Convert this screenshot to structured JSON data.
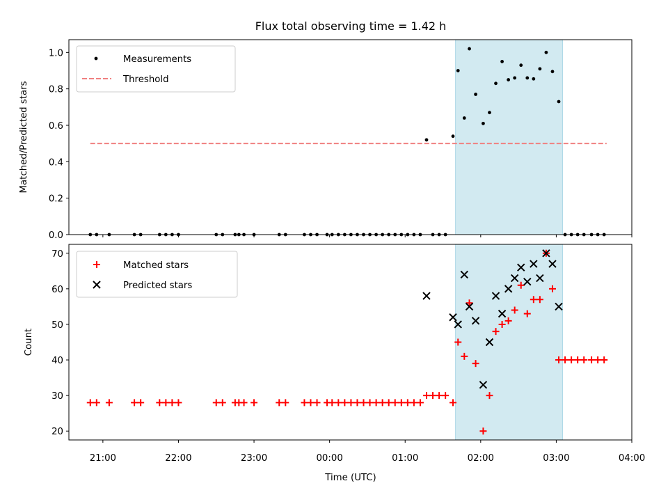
{
  "title": "Flux total observing time = 1.42 h",
  "colors": {
    "measurement": "#000000",
    "threshold": "#f08080",
    "matched": "#ff0000",
    "predicted": "#000000",
    "shade": "#add8e6"
  },
  "chart_data": [
    {
      "type": "scatter",
      "ylabel": "Matched/Predicted stars",
      "xlabel": "",
      "ylim": [
        0,
        1.07
      ],
      "yticks": [
        0.0,
        0.2,
        0.4,
        0.6,
        0.8,
        1.0
      ],
      "ytick_labels": [
        "0.0",
        "0.2",
        "0.4",
        "0.6",
        "0.8",
        "1.0"
      ],
      "legend_position": "top-left",
      "legend": [
        {
          "label": "Measurements",
          "marker": "dot"
        },
        {
          "label": "Threshold",
          "marker": "dashed-line"
        }
      ],
      "shaded_region": {
        "x": [
          "01:40",
          "03:05"
        ]
      },
      "threshold": {
        "name": "Threshold",
        "y": 0.5,
        "x": [
          "20:50",
          "03:40"
        ]
      },
      "series": [
        {
          "name": "Measurements",
          "marker": "dot",
          "points": [
            [
              "20:50",
              0
            ],
            [
              "20:55",
              0
            ],
            [
              "21:05",
              0
            ],
            [
              "21:25",
              0
            ],
            [
              "21:30",
              0
            ],
            [
              "21:45",
              0
            ],
            [
              "21:50",
              0
            ],
            [
              "21:55",
              0
            ],
            [
              "22:00",
              0
            ],
            [
              "22:30",
              0
            ],
            [
              "22:35",
              0
            ],
            [
              "22:45",
              0
            ],
            [
              "22:48",
              0
            ],
            [
              "22:52",
              0
            ],
            [
              "23:00",
              0
            ],
            [
              "23:20",
              0
            ],
            [
              "23:25",
              0
            ],
            [
              "23:40",
              0
            ],
            [
              "23:45",
              0
            ],
            [
              "23:50",
              0
            ],
            [
              "23:58",
              0
            ],
            [
              "00:02",
              0
            ],
            [
              "00:07",
              0
            ],
            [
              "00:12",
              0
            ],
            [
              "00:17",
              0
            ],
            [
              "00:22",
              0
            ],
            [
              "00:27",
              0
            ],
            [
              "00:32",
              0
            ],
            [
              "00:37",
              0
            ],
            [
              "00:42",
              0
            ],
            [
              "00:47",
              0
            ],
            [
              "00:52",
              0
            ],
            [
              "00:57",
              0
            ],
            [
              "01:02",
              0
            ],
            [
              "01:07",
              0
            ],
            [
              "01:12",
              0
            ],
            [
              "01:17",
              0.52
            ],
            [
              "01:22",
              0
            ],
            [
              "01:27",
              0
            ],
            [
              "01:32",
              0
            ],
            [
              "01:38",
              0.54
            ],
            [
              "01:42",
              0.9
            ],
            [
              "01:47",
              0.64
            ],
            [
              "01:51",
              1.02
            ],
            [
              "01:56",
              0.77
            ],
            [
              "02:02",
              0.61
            ],
            [
              "02:07",
              0.67
            ],
            [
              "02:12",
              0.83
            ],
            [
              "02:17",
              0.95
            ],
            [
              "02:22",
              0.85
            ],
            [
              "02:27",
              0.86
            ],
            [
              "02:32",
              0.93
            ],
            [
              "02:37",
              0.86
            ],
            [
              "02:42",
              0.855
            ],
            [
              "02:47",
              0.91
            ],
            [
              "02:52",
              1.0
            ],
            [
              "02:57",
              0.895
            ],
            [
              "03:02",
              0.73
            ],
            [
              "03:07",
              0
            ],
            [
              "03:12",
              0
            ],
            [
              "03:17",
              0
            ],
            [
              "03:22",
              0
            ],
            [
              "03:28",
              0
            ],
            [
              "03:33",
              0
            ],
            [
              "03:38",
              0
            ]
          ]
        }
      ]
    },
    {
      "type": "scatter",
      "ylabel": "Count",
      "xlabel": "Time (UTC)",
      "ylim": [
        17.5,
        72.5
      ],
      "yticks": [
        20,
        30,
        40,
        50,
        60,
        70
      ],
      "ytick_labels": [
        "20",
        "30",
        "40",
        "50",
        "60",
        "70"
      ],
      "xticks": [
        "21:00",
        "22:00",
        "23:00",
        "00:00",
        "01:00",
        "02:00",
        "03:00",
        "04:00"
      ],
      "xlim": [
        "20:33",
        "04:00"
      ],
      "legend_position": "top-left",
      "legend": [
        {
          "label": "Matched stars",
          "marker": "plus"
        },
        {
          "label": "Predicted stars",
          "marker": "x"
        }
      ],
      "shaded_region": {
        "x": [
          "01:40",
          "03:05"
        ]
      },
      "series": [
        {
          "name": "Matched stars",
          "marker": "plus",
          "points": [
            [
              "20:50",
              28
            ],
            [
              "20:55",
              28
            ],
            [
              "21:05",
              28
            ],
            [
              "21:25",
              28
            ],
            [
              "21:30",
              28
            ],
            [
              "21:45",
              28
            ],
            [
              "21:50",
              28
            ],
            [
              "21:55",
              28
            ],
            [
              "22:00",
              28
            ],
            [
              "22:30",
              28
            ],
            [
              "22:35",
              28
            ],
            [
              "22:45",
              28
            ],
            [
              "22:48",
              28
            ],
            [
              "22:52",
              28
            ],
            [
              "23:00",
              28
            ],
            [
              "23:20",
              28
            ],
            [
              "23:25",
              28
            ],
            [
              "23:40",
              28
            ],
            [
              "23:45",
              28
            ],
            [
              "23:50",
              28
            ],
            [
              "23:58",
              28
            ],
            [
              "00:02",
              28
            ],
            [
              "00:07",
              28
            ],
            [
              "00:12",
              28
            ],
            [
              "00:17",
              28
            ],
            [
              "00:22",
              28
            ],
            [
              "00:27",
              28
            ],
            [
              "00:32",
              28
            ],
            [
              "00:37",
              28
            ],
            [
              "00:42",
              28
            ],
            [
              "00:47",
              28
            ],
            [
              "00:52",
              28
            ],
            [
              "00:57",
              28
            ],
            [
              "01:02",
              28
            ],
            [
              "01:07",
              28
            ],
            [
              "01:12",
              28
            ],
            [
              "01:17",
              30
            ],
            [
              "01:22",
              30
            ],
            [
              "01:27",
              30
            ],
            [
              "01:32",
              30
            ],
            [
              "01:38",
              28
            ],
            [
              "01:42",
              45
            ],
            [
              "01:47",
              41
            ],
            [
              "01:51",
              56
            ],
            [
              "01:56",
              39
            ],
            [
              "02:02",
              20
            ],
            [
              "02:07",
              30
            ],
            [
              "02:12",
              48
            ],
            [
              "02:17",
              50
            ],
            [
              "02:22",
              51
            ],
            [
              "02:27",
              54
            ],
            [
              "02:32",
              61
            ],
            [
              "02:37",
              53
            ],
            [
              "02:42",
              57
            ],
            [
              "02:47",
              57
            ],
            [
              "02:52",
              70
            ],
            [
              "02:57",
              60
            ],
            [
              "03:02",
              40
            ],
            [
              "03:07",
              40
            ],
            [
              "03:12",
              40
            ],
            [
              "03:17",
              40
            ],
            [
              "03:22",
              40
            ],
            [
              "03:28",
              40
            ],
            [
              "03:33",
              40
            ],
            [
              "03:38",
              40
            ]
          ]
        },
        {
          "name": "Predicted stars",
          "marker": "x",
          "points": [
            [
              "01:17",
              58
            ],
            [
              "01:38",
              52
            ],
            [
              "01:42",
              50
            ],
            [
              "01:47",
              64
            ],
            [
              "01:51",
              55
            ],
            [
              "01:56",
              51
            ],
            [
              "02:02",
              33
            ],
            [
              "02:07",
              45
            ],
            [
              "02:12",
              58
            ],
            [
              "02:17",
              53
            ],
            [
              "02:22",
              60
            ],
            [
              "02:27",
              63
            ],
            [
              "02:32",
              66
            ],
            [
              "02:37",
              62
            ],
            [
              "02:42",
              67
            ],
            [
              "02:47",
              63
            ],
            [
              "02:52",
              70
            ],
            [
              "02:57",
              67
            ],
            [
              "03:02",
              55
            ]
          ]
        }
      ]
    }
  ]
}
